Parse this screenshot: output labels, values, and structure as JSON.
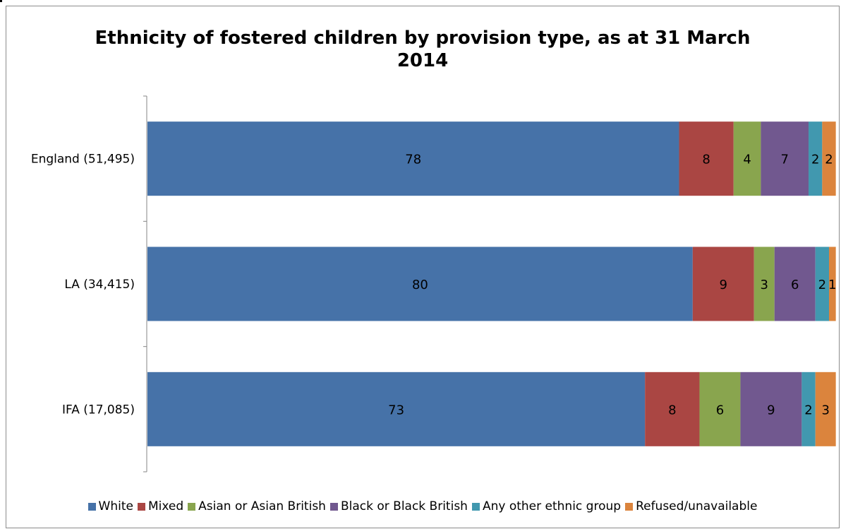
{
  "chart_data": {
    "type": "bar",
    "orientation": "horizontal",
    "stacked": true,
    "title": "Ethnicity of fostered children by provision type, as at 31 March 2014",
    "title_lines": [
      "Ethnicity of fostered children by provision type, as at 31 March",
      "2014"
    ],
    "xlabel": "",
    "ylabel": "",
    "xlim": [
      0,
      101
    ],
    "grid": false,
    "legend_position": "bottom",
    "categories": [
      "England (51,495)",
      "LA (34,415)",
      "IFA (17,085)"
    ],
    "series": [
      {
        "name": "White",
        "color": "#4672A8",
        "values": [
          78,
          80,
          73
        ]
      },
      {
        "name": "Mixed",
        "color": "#AA4643",
        "values": [
          8,
          9,
          8
        ]
      },
      {
        "name": "Asian or Asian British",
        "color": "#89A54E",
        "values": [
          4,
          3,
          6
        ]
      },
      {
        "name": "Black or Black British",
        "color": "#71588F",
        "values": [
          7,
          6,
          9
        ]
      },
      {
        "name": "Any other ethnic group",
        "color": "#4198AF",
        "values": [
          2,
          2,
          2
        ]
      },
      {
        "name": "Refused/unavailable",
        "color": "#DB843D",
        "values": [
          2,
          1,
          3
        ]
      }
    ]
  }
}
